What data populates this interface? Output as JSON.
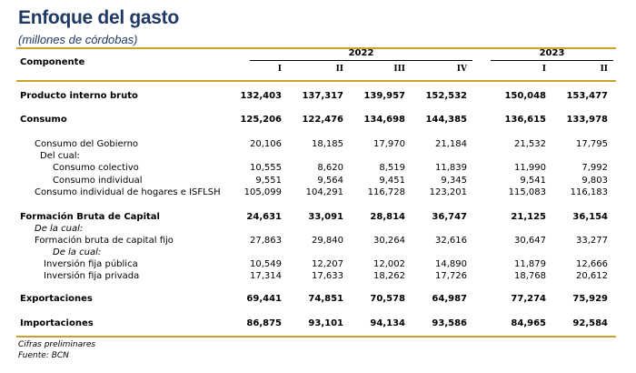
{
  "title": "Enfoque del gasto",
  "subtitle": "(millones de córdobas)",
  "header": {
    "component_label": "Componente",
    "years": [
      "2022",
      "2023"
    ],
    "quarters": [
      "I",
      "II",
      "III",
      "IV",
      "I",
      "II"
    ]
  },
  "rows": [
    {
      "label": "Producto interno bruto",
      "values": [
        "132,403",
        "137,317",
        "139,957",
        "152,532",
        "150,048",
        "153,477"
      ]
    },
    {
      "label": "Consumo",
      "values": [
        "125,206",
        "122,476",
        "134,698",
        "144,385",
        "136,615",
        "133,978"
      ]
    },
    {
      "label": "Consumo del Gobierno",
      "values": [
        "20,106",
        "18,185",
        "17,970",
        "21,184",
        "21,532",
        "17,795"
      ]
    },
    {
      "label": "Del cual:",
      "values": []
    },
    {
      "label": "Consumo colectivo",
      "values": [
        "10,555",
        "8,620",
        "8,519",
        "11,839",
        "11,990",
        "7,992"
      ]
    },
    {
      "label": "Consumo individual",
      "values": [
        "9,551",
        "9,564",
        "9,451",
        "9,345",
        "9,541",
        "9,803"
      ]
    },
    {
      "label": "Consumo individual de hogares e ISFLSH",
      "values": [
        "105,099",
        "104,291",
        "116,728",
        "123,201",
        "115,083",
        "116,183"
      ]
    },
    {
      "label": "Formación Bruta de Capital",
      "values": [
        "24,631",
        "33,091",
        "28,814",
        "36,747",
        "21,125",
        "36,154"
      ]
    },
    {
      "label": "De la cual:",
      "values": []
    },
    {
      "label": "Formación bruta de capital fijo",
      "values": [
        "27,863",
        "29,840",
        "30,264",
        "32,616",
        "30,647",
        "33,277"
      ]
    },
    {
      "label": "De la cual:",
      "values": []
    },
    {
      "label": "Inversión fija pública",
      "values": [
        "10,549",
        "12,207",
        "12,002",
        "14,890",
        "11,879",
        "12,666"
      ]
    },
    {
      "label": "Inversión fija privada",
      "values": [
        "17,314",
        "17,633",
        "18,262",
        "17,726",
        "18,768",
        "20,612"
      ]
    },
    {
      "label": "Exportaciones",
      "values": [
        "69,441",
        "74,851",
        "70,578",
        "64,987",
        "77,274",
        "75,929"
      ]
    },
    {
      "label": "Importaciones",
      "values": [
        "86,875",
        "93,101",
        "94,134",
        "93,586",
        "84,965",
        "92,584"
      ]
    }
  ],
  "footnotes": [
    "Cifras preliminares",
    "Fuente: BCN"
  ],
  "colors": {
    "accent_gold": "#c9a227",
    "title_navy": "#1f3864"
  }
}
